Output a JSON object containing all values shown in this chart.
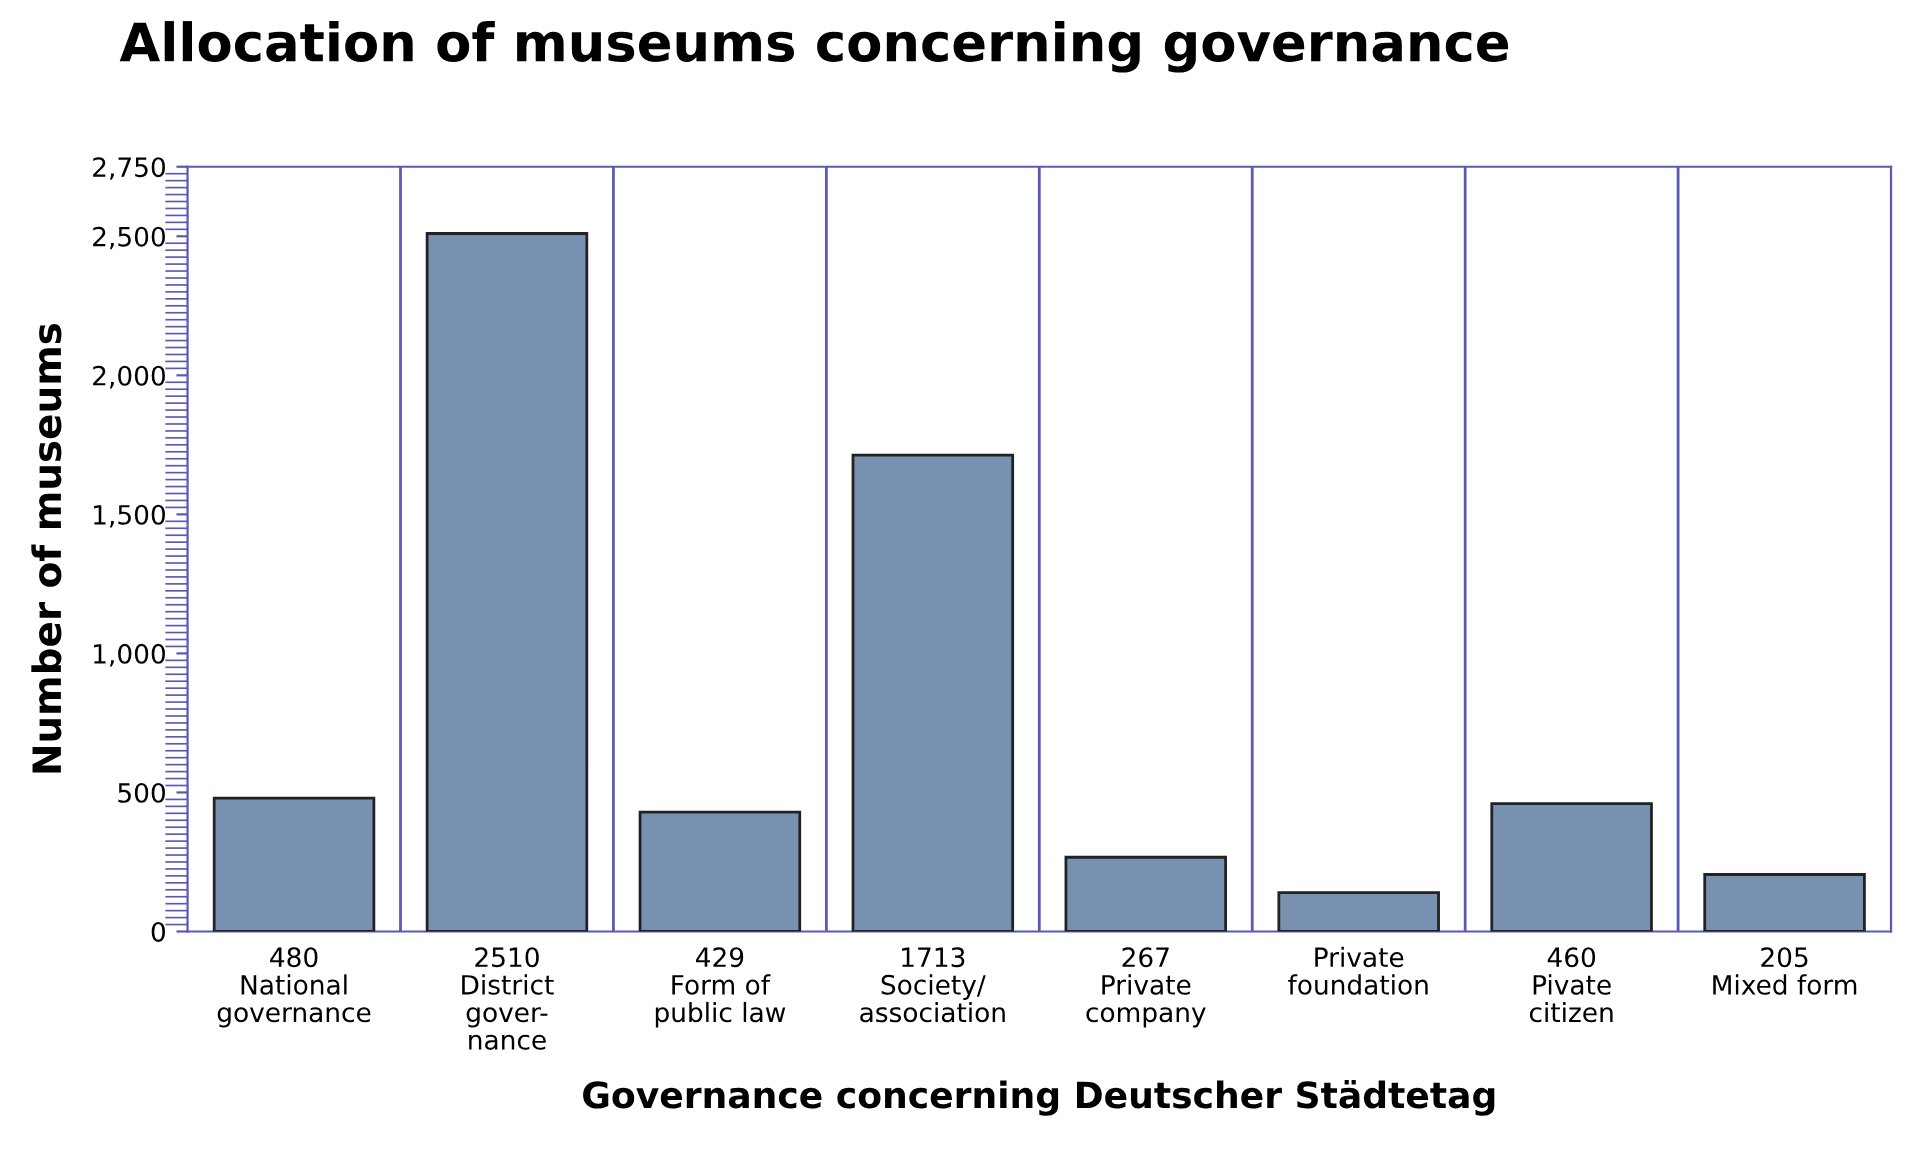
{
  "chart_data": {
    "type": "bar",
    "title": "Allocation of museums concerning governance",
    "xlabel": "Governance concerning Deutscher Städtetag",
    "ylabel": "Number of museums",
    "categories": [
      "National\ngovernance",
      "District\ngover-\nnance",
      "Form of\npublic law",
      "Society/\nassociation",
      "Private\ncompany",
      "Private\nfoundation",
      "Pivate\ncitizen",
      "Mixed form"
    ],
    "values": [
      480,
      2510,
      429,
      1713,
      267,
      140,
      460,
      205
    ],
    "value_labels": [
      "480",
      "2510",
      "429",
      "1713",
      "267",
      null,
      "460",
      "205"
    ],
    "color": "#7891b0",
    "ylim": [
      0,
      2750
    ],
    "yticks": [
      0,
      {
        "value": 500,
        "label": "500"
      },
      {
        "value": 1000,
        "label": "1,000"
      },
      {
        "value": 1500,
        "label": "1,500"
      },
      {
        "value": 2000,
        "label": "2,000"
      },
      {
        "value": 2500,
        "label": "2,500"
      },
      {
        "value": 2750,
        "label": "2,750"
      }
    ],
    "grid": "x"
  }
}
